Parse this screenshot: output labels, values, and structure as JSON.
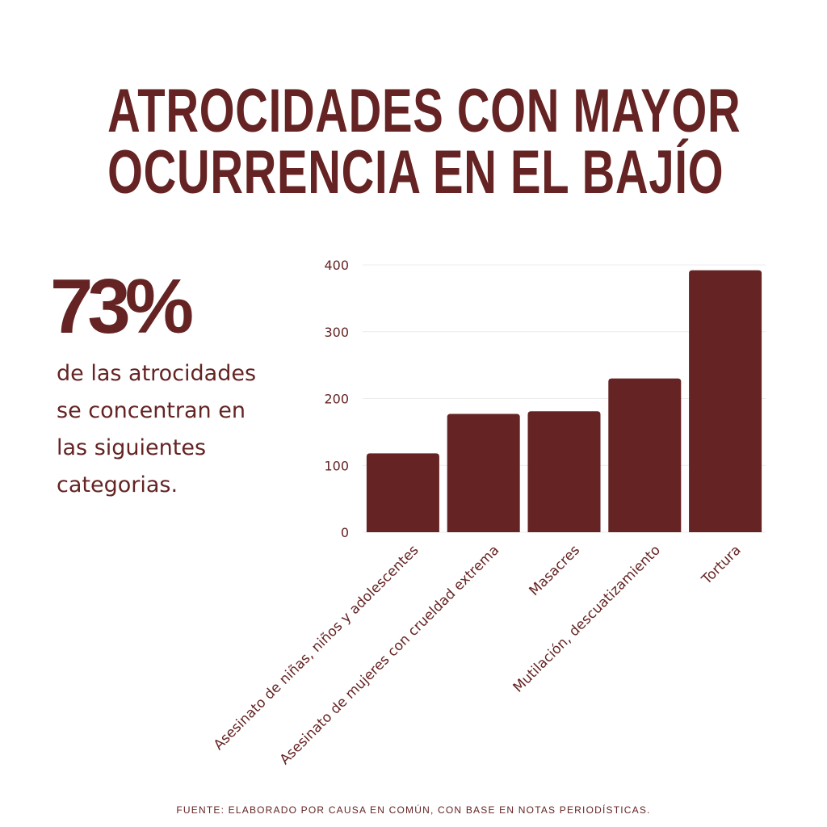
{
  "header": {
    "title_line1": "ATROCIDADES CON MAYOR",
    "title_line2": "OCURRENCIA EN EL BAJÍO"
  },
  "highlight": {
    "value": "73%",
    "description": "de las atrocidades se concentran en las siguientes categorias."
  },
  "footer": {
    "source": "FUENTE: ELABORADO POR CAUSA EN COMÚN, CON BASE EN NOTAS PERIODÍSTICAS."
  },
  "colors": {
    "bar": "#652323",
    "text": "#652323",
    "grid": "#ececec"
  },
  "chart_data": {
    "type": "bar",
    "categories": [
      "Asesinato de niñas, niños y adolescentes",
      "Asesinato de mujeres con crueldad extrema",
      "Masacres",
      "Mutilación, descuatizamiento",
      "Tortura"
    ],
    "values": [
      118,
      177,
      181,
      230,
      392
    ],
    "ylim": [
      0,
      400
    ],
    "yticks": [
      0,
      100,
      200,
      300,
      400
    ],
    "grid": true,
    "legend": "none"
  }
}
